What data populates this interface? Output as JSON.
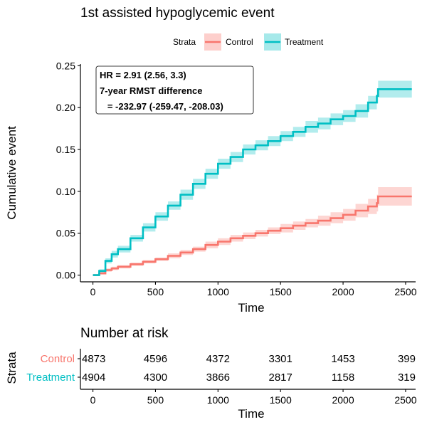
{
  "chart_data": {
    "type": "line",
    "title": "1st assisted hypoglycemic event",
    "legend": {
      "title": "Strata",
      "placement": "top",
      "entries": [
        "Control",
        "Treatment"
      ]
    },
    "xlabel": "Time",
    "ylabel": "Cumulative event",
    "xlim": [
      -100,
      2580
    ],
    "ylim": [
      -0.008,
      0.252
    ],
    "xticks": [
      0,
      500,
      1000,
      1500,
      2000,
      2500
    ],
    "yticks": [
      0.0,
      0.05,
      0.1,
      0.15,
      0.2,
      0.25
    ],
    "ytick_labels": [
      "0.00",
      "0.05",
      "0.10",
      "0.15",
      "0.20",
      "0.25"
    ],
    "grid": false,
    "annotation": {
      "lines": [
        "HR = 2.91 (2.56, 3.3)",
        "7-year RMST difference",
        "   = -232.97 (-259.47, -208.03)"
      ]
    },
    "series": [
      {
        "name": "Control",
        "color": "#F8766D",
        "x": [
          0,
          50,
          100,
          150,
          200,
          300,
          400,
          500,
          600,
          700,
          800,
          900,
          1000,
          1100,
          1200,
          1300,
          1400,
          1500,
          1600,
          1700,
          1800,
          1900,
          2000,
          2100,
          2200,
          2270,
          2280,
          2550
        ],
        "y": [
          0,
          0.002,
          0.006,
          0.008,
          0.01,
          0.013,
          0.016,
          0.019,
          0.023,
          0.027,
          0.031,
          0.036,
          0.04,
          0.044,
          0.047,
          0.05,
          0.053,
          0.056,
          0.059,
          0.062,
          0.065,
          0.068,
          0.072,
          0.077,
          0.082,
          0.086,
          0.094,
          0.094
        ],
        "lower": [
          0,
          0.001,
          0.004,
          0.006,
          0.008,
          0.011,
          0.014,
          0.017,
          0.02,
          0.024,
          0.028,
          0.032,
          0.036,
          0.04,
          0.043,
          0.046,
          0.049,
          0.051,
          0.054,
          0.057,
          0.059,
          0.062,
          0.065,
          0.069,
          0.073,
          0.076,
          0.083,
          0.083
        ],
        "upper": [
          0,
          0.004,
          0.008,
          0.01,
          0.012,
          0.015,
          0.018,
          0.021,
          0.026,
          0.03,
          0.034,
          0.04,
          0.044,
          0.048,
          0.051,
          0.054,
          0.057,
          0.061,
          0.064,
          0.067,
          0.071,
          0.075,
          0.079,
          0.085,
          0.091,
          0.096,
          0.105,
          0.105
        ]
      },
      {
        "name": "Treatment",
        "color": "#00BFC4",
        "x": [
          0,
          50,
          100,
          150,
          200,
          300,
          400,
          500,
          600,
          700,
          800,
          900,
          1000,
          1100,
          1200,
          1300,
          1400,
          1500,
          1600,
          1700,
          1800,
          1900,
          2000,
          2100,
          2200,
          2270,
          2280,
          2550
        ],
        "y": [
          0,
          0.005,
          0.017,
          0.025,
          0.031,
          0.044,
          0.057,
          0.07,
          0.083,
          0.096,
          0.109,
          0.121,
          0.133,
          0.141,
          0.15,
          0.155,
          0.16,
          0.166,
          0.171,
          0.177,
          0.181,
          0.186,
          0.19,
          0.196,
          0.206,
          0.214,
          0.222,
          0.222
        ],
        "lower": [
          0,
          0.003,
          0.014,
          0.021,
          0.027,
          0.04,
          0.052,
          0.065,
          0.078,
          0.09,
          0.103,
          0.115,
          0.127,
          0.135,
          0.144,
          0.149,
          0.154,
          0.16,
          0.165,
          0.17,
          0.174,
          0.179,
          0.183,
          0.188,
          0.198,
          0.205,
          0.212,
          0.212
        ],
        "upper": [
          0,
          0.007,
          0.02,
          0.029,
          0.035,
          0.048,
          0.062,
          0.075,
          0.088,
          0.102,
          0.115,
          0.127,
          0.139,
          0.147,
          0.156,
          0.161,
          0.166,
          0.172,
          0.177,
          0.184,
          0.188,
          0.193,
          0.197,
          0.204,
          0.214,
          0.223,
          0.232,
          0.232
        ]
      }
    ]
  },
  "risk_table": {
    "title": "Number at risk",
    "ylabel": "Strata",
    "xlabel": "Time",
    "times": [
      0,
      500,
      1000,
      1500,
      2000,
      2500
    ],
    "rows": [
      {
        "label": "Control",
        "color": "#F8766D",
        "values": [
          "4873",
          "4596",
          "4372",
          "3301",
          "1453",
          "399"
        ]
      },
      {
        "label": "Treatment",
        "color": "#00BFC4",
        "values": [
          "4904",
          "4300",
          "3866",
          "2817",
          "1158",
          "319"
        ]
      }
    ]
  }
}
